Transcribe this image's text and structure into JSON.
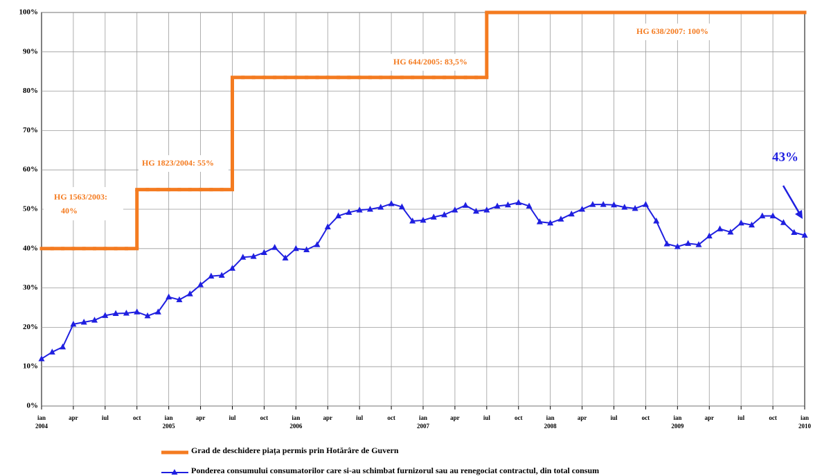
{
  "chart_data": {
    "type": "line",
    "categories": [
      "ian",
      null,
      null,
      "apr",
      null,
      null,
      "iul",
      null,
      null,
      "oct",
      null,
      null,
      "ian",
      null,
      null,
      "apr",
      null,
      null,
      "iul",
      null,
      null,
      "oct",
      null,
      null,
      "ian",
      null,
      null,
      "apr",
      null,
      null,
      "iul",
      null,
      null,
      "oct",
      null,
      null,
      "ian",
      null,
      null,
      "apr",
      null,
      null,
      "iul",
      null,
      null,
      "oct",
      null,
      null,
      "ian",
      null,
      null,
      "apr",
      null,
      null,
      "iul",
      null,
      null,
      "oct",
      null,
      null,
      "ian",
      null,
      null,
      "apr",
      null,
      null,
      "iul",
      null,
      null,
      "oct",
      null,
      null,
      "ian"
    ],
    "year_labels": [
      "2004",
      null,
      null,
      null,
      null,
      null,
      null,
      null,
      null,
      null,
      null,
      null,
      "2005",
      null,
      null,
      null,
      null,
      null,
      null,
      null,
      null,
      null,
      null,
      null,
      "2006",
      null,
      null,
      null,
      null,
      null,
      null,
      null,
      null,
      null,
      null,
      null,
      "2007",
      null,
      null,
      null,
      null,
      null,
      null,
      null,
      null,
      null,
      null,
      null,
      "2008",
      null,
      null,
      null,
      null,
      null,
      null,
      null,
      null,
      null,
      null,
      null,
      "2009",
      null,
      null,
      null,
      null,
      null,
      null,
      null,
      null,
      null,
      null,
      null,
      "2010"
    ],
    "series": [
      {
        "name": "Grad de deschidere piața permis prin Hotărâre de Guvern",
        "color": "#f47b20",
        "step": true,
        "values": [
          40,
          40,
          40,
          40,
          40,
          40,
          40,
          40,
          40,
          55,
          55,
          55,
          55,
          55,
          55,
          55,
          55,
          55,
          83.5,
          83.5,
          83.5,
          83.5,
          83.5,
          83.5,
          83.5,
          83.5,
          83.5,
          83.5,
          83.5,
          83.5,
          83.5,
          83.5,
          83.5,
          83.5,
          83.5,
          83.5,
          83.5,
          83.5,
          83.5,
          83.5,
          83.5,
          83.5,
          100,
          100,
          100,
          100,
          100,
          100,
          100,
          100,
          100,
          100,
          100,
          100,
          100,
          100,
          100,
          100,
          100,
          100,
          100,
          100,
          100,
          100,
          100,
          100,
          100,
          100,
          100,
          100,
          100,
          100,
          100
        ]
      },
      {
        "name": "Ponderea consumului consumatorilor care si-au schimbat furnizorul sau au renegociat contractul, din total consum",
        "color": "#1f1fe0",
        "marker": "triangle",
        "values": [
          12,
          13.7,
          15,
          20.8,
          21.3,
          21.8,
          23,
          23.5,
          23.6,
          23.9,
          22.9,
          23.9,
          27.7,
          27,
          28.5,
          30.8,
          33,
          33.2,
          35,
          37.8,
          38,
          39,
          40.3,
          37.6,
          40,
          39.7,
          41,
          45.5,
          48.3,
          49.2,
          49.8,
          50,
          50.5,
          51.4,
          50.6,
          47,
          47.2,
          48,
          48.6,
          49.8,
          51,
          49.5,
          49.8,
          50.8,
          51.1,
          51.7,
          50.8,
          46.8,
          46.5,
          47.5,
          48.8,
          50,
          51.2,
          51.2,
          51.1,
          50.5,
          50.2,
          51.2,
          47,
          41.2,
          40.5,
          41.3,
          41,
          43.2,
          45,
          44.2,
          46.5,
          46,
          48.3,
          48.3,
          46.6,
          44.1,
          43.4
        ]
      }
    ],
    "annotations": [
      "HG 1563/2003:",
      "40%",
      "HG 1823/2004:  55%",
      "HG 644/2005:  83,5%",
      "HG 638/2007: 100%",
      "43%"
    ],
    "ylim": [
      0,
      100
    ],
    "yticks": [
      {
        "value": 0,
        "label": "0%"
      },
      {
        "value": 10,
        "label": "10%"
      },
      {
        "value": 20,
        "label": "20%"
      },
      {
        "value": 30,
        "label": "30%"
      },
      {
        "value": 40,
        "label": "40%"
      },
      {
        "value": 50,
        "label": "50%"
      },
      {
        "value": 60,
        "label": "60%"
      },
      {
        "value": 70,
        "label": "70%"
      },
      {
        "value": 80,
        "label": "80%"
      },
      {
        "value": 90,
        "label": "90%"
      },
      {
        "value": 100,
        "label": "100%"
      }
    ],
    "grid": true
  }
}
